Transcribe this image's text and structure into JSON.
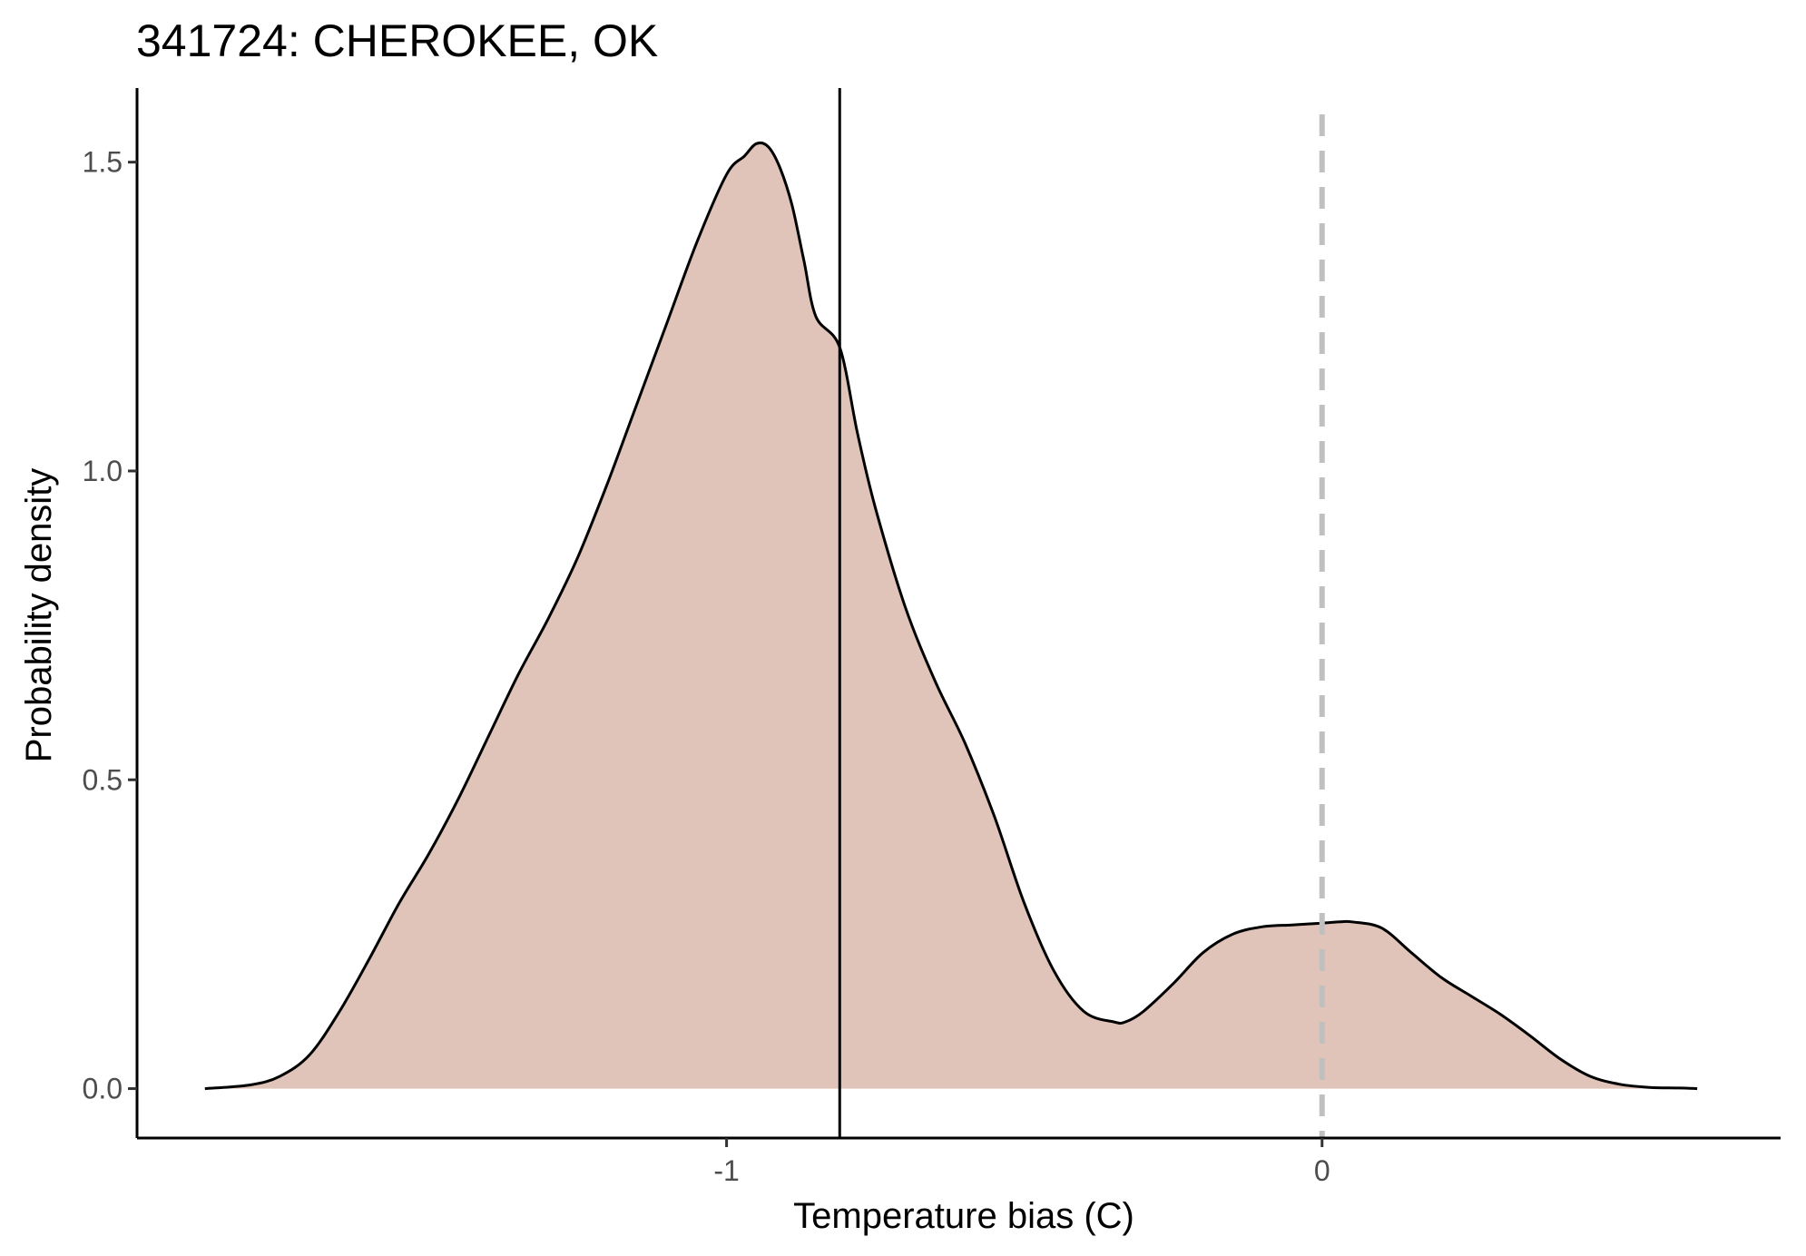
{
  "chart_data": {
    "type": "area",
    "title": "341724: CHEROKEE, OK",
    "xlabel": "Temperature bias (C)",
    "ylabel": "Probability density",
    "xlim": [
      -1.99,
      0.77
    ],
    "ylim": [
      -0.08,
      1.62
    ],
    "x_ticks": [
      {
        "value": -1,
        "label": "-1"
      },
      {
        "value": 0,
        "label": "0"
      }
    ],
    "y_ticks": [
      {
        "value": 0.0,
        "label": "0.0"
      },
      {
        "value": 0.5,
        "label": "0.5"
      },
      {
        "value": 1.0,
        "label": "1.0"
      },
      {
        "value": 1.5,
        "label": "1.5"
      }
    ],
    "grid": false,
    "legend": "none",
    "fill_color": "#e1c4b9",
    "line_color": "#000000",
    "reference_lines": [
      {
        "value": -0.81,
        "style": "solid",
        "color": "#000000"
      },
      {
        "value": 0,
        "style": "dashed",
        "color": "#c0c0c0"
      }
    ],
    "series": [
      {
        "x": [
          -1.876,
          -1.8,
          -1.75,
          -1.7,
          -1.65,
          -1.6,
          -1.55,
          -1.5,
          -1.45,
          -1.4,
          -1.35,
          -1.3,
          -1.25,
          -1.2,
          -1.15,
          -1.1,
          -1.05,
          -1.0,
          -0.97,
          -0.95,
          -0.93,
          -0.91,
          -0.89,
          -0.87,
          -0.85,
          -0.81,
          -0.78,
          -0.75,
          -0.7,
          -0.65,
          -0.6,
          -0.55,
          -0.5,
          -0.45,
          -0.4,
          -0.35,
          -0.33,
          -0.3,
          -0.25,
          -0.2,
          -0.15,
          -0.1,
          -0.05,
          0.0,
          0.03,
          0.05,
          0.1,
          0.15,
          0.2,
          0.25,
          0.3,
          0.35,
          0.4,
          0.45,
          0.5,
          0.55,
          0.6,
          0.63
        ],
        "y": [
          0.0,
          0.006,
          0.02,
          0.055,
          0.125,
          0.21,
          0.3,
          0.38,
          0.47,
          0.57,
          0.67,
          0.76,
          0.86,
          0.98,
          1.11,
          1.24,
          1.37,
          1.48,
          1.51,
          1.53,
          1.525,
          1.49,
          1.43,
          1.34,
          1.25,
          1.2,
          1.06,
          0.94,
          0.78,
          0.66,
          0.56,
          0.44,
          0.3,
          0.19,
          0.125,
          0.108,
          0.108,
          0.125,
          0.17,
          0.22,
          0.25,
          0.262,
          0.265,
          0.268,
          0.27,
          0.27,
          0.26,
          0.22,
          0.18,
          0.15,
          0.12,
          0.085,
          0.048,
          0.02,
          0.007,
          0.002,
          0.001,
          0.0
        ]
      }
    ]
  }
}
